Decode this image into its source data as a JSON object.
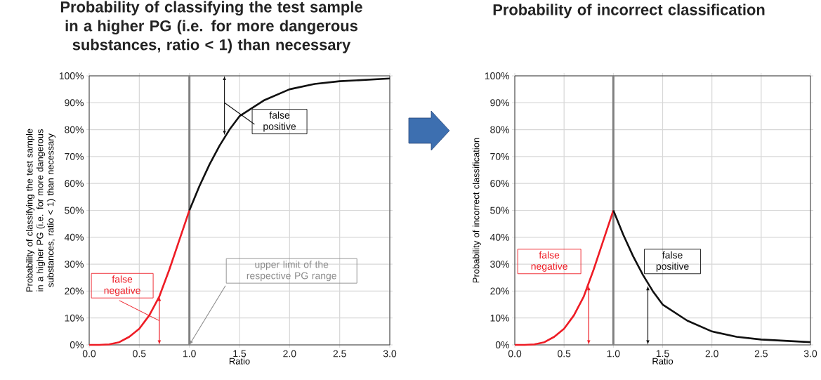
{
  "chart_data": [
    {
      "type": "line",
      "title": "Probability of classifying the test sample in a higher PG (i.e. for more dangerous substances, ratio < 1) than necessary",
      "xlabel": "Ratio",
      "ylabel": "Probability of classifying the test sample in a higher PG (i.e. for more dangerous substances, ratio < 1) than necessary",
      "series": [
        {
          "color": "#ee1c25",
          "x": [
            0,
            0.1,
            0.2,
            0.3,
            0.4,
            0.5,
            0.6,
            0.7,
            0.8,
            0.9,
            1.0
          ],
          "values": [
            0,
            0,
            0.2,
            1,
            3,
            6,
            11,
            18,
            28,
            39,
            50
          ]
        },
        {
          "color": "#111111",
          "x": [
            1.0,
            1.1,
            1.2,
            1.3,
            1.4,
            1.5,
            1.75,
            2.0,
            2.25,
            2.5,
            3.0
          ],
          "values": [
            50,
            59,
            67,
            74,
            80,
            85,
            91,
            95,
            97,
            98,
            99
          ]
        }
      ],
      "xlim": [
        0,
        3
      ],
      "ylim": [
        0,
        100
      ],
      "xticks": [
        {
          "value": 0,
          "label": "0.0"
        },
        {
          "value": 0.5,
          "label": "0.5"
        },
        {
          "value": 1,
          "label": "1.0"
        },
        {
          "value": 1.5,
          "label": "1.5"
        },
        {
          "value": 2,
          "label": "2.0"
        },
        {
          "value": 2.5,
          "label": "2.5"
        },
        {
          "value": 3,
          "label": "3.0"
        }
      ],
      "yticks": [
        {
          "value": 0,
          "label": "0%"
        },
        {
          "value": 10,
          "label": "10%"
        },
        {
          "value": 20,
          "label": "20%"
        },
        {
          "value": 30,
          "label": "30%"
        },
        {
          "value": 40,
          "label": "40%"
        },
        {
          "value": 50,
          "label": "50%"
        },
        {
          "value": 60,
          "label": "60%"
        },
        {
          "value": 70,
          "label": "70%"
        },
        {
          "value": 80,
          "label": "80%"
        },
        {
          "value": 90,
          "label": "90%"
        },
        {
          "value": 100,
          "label": "100%"
        }
      ],
      "grid": true,
      "marker": "none",
      "line_style": "solid",
      "ref_lines": [
        {
          "axis": "x",
          "value": 1,
          "color": "#808080"
        }
      ],
      "annotations": [
        "false positive",
        {
          "text": "false negative",
          "x": 0.7,
          "y": 18
        },
        "upper limit of the respective PG range"
      ]
    },
    {
      "type": "line",
      "title": "Probability of incorrect classification",
      "xlabel": "Ratio",
      "ylabel": "Probability of incorrect classification",
      "series": [
        {
          "color": "#ee1c25",
          "x": [
            0,
            0.1,
            0.2,
            0.3,
            0.4,
            0.5,
            0.6,
            0.7,
            0.8,
            0.9,
            1.0
          ],
          "values": [
            0,
            0,
            0.2,
            1,
            3,
            6,
            11,
            18,
            28,
            39,
            50
          ]
        },
        {
          "color": "#111111",
          "x": [
            1.0,
            1.1,
            1.2,
            1.3,
            1.4,
            1.5,
            1.75,
            2.0,
            2.25,
            2.5,
            3.0
          ],
          "values": [
            50,
            41,
            33,
            26,
            20,
            15,
            9,
            5,
            3,
            2,
            1
          ]
        }
      ],
      "xlim": [
        0,
        3
      ],
      "ylim": [
        0,
        100
      ],
      "xticks": [
        {
          "value": 0,
          "label": "0.0"
        },
        {
          "value": 0.5,
          "label": "0.5"
        },
        {
          "value": 1,
          "label": "1.0"
        },
        {
          "value": 1.5,
          "label": "1.5"
        },
        {
          "value": 2,
          "label": "2.0"
        },
        {
          "value": 2.5,
          "label": "2.5"
        },
        {
          "value": 3,
          "label": "3.0"
        }
      ],
      "yticks": [
        {
          "value": 0,
          "label": "0%"
        },
        {
          "value": 10,
          "label": "10%"
        },
        {
          "value": 20,
          "label": "20%"
        },
        {
          "value": 30,
          "label": "30%"
        },
        {
          "value": 40,
          "label": "40%"
        },
        {
          "value": 50,
          "label": "50%"
        },
        {
          "value": 60,
          "label": "60%"
        },
        {
          "value": 70,
          "label": "70%"
        },
        {
          "value": 80,
          "label": "80%"
        },
        {
          "value": 90,
          "label": "90%"
        },
        {
          "value": 100,
          "label": "100%"
        }
      ],
      "grid": true,
      "marker": "none",
      "line_style": "solid",
      "ref_lines": [
        {
          "axis": "x",
          "value": 1,
          "color": "#808080"
        }
      ],
      "annotations": [
        {
          "text": "false negative",
          "x": 0.75,
          "y": 22
        },
        {
          "text": "false positive",
          "x": 1.35,
          "y": 22
        }
      ]
    }
  ]
}
